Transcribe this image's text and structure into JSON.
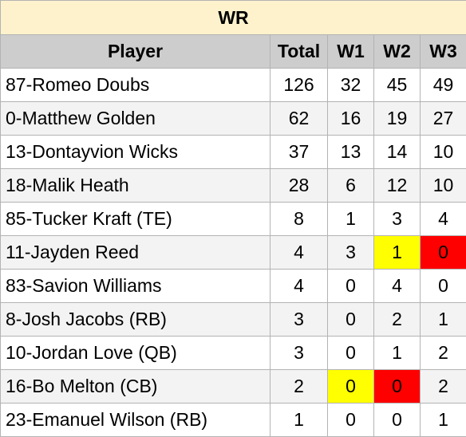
{
  "title": "WR",
  "headers": {
    "player": "Player",
    "total": "Total",
    "w1": "W1",
    "w2": "W2",
    "w3": "W3"
  },
  "highlight_colors": {
    "yellow": "#ffff00",
    "red": "#ff0000"
  },
  "rows": [
    {
      "player": "87-Romeo Doubs",
      "total": "126",
      "w1": "32",
      "w2": "45",
      "w3": "49"
    },
    {
      "player": "0-Matthew Golden",
      "total": "62",
      "w1": "16",
      "w2": "19",
      "w3": "27"
    },
    {
      "player": "13-Dontayvion Wicks",
      "total": "37",
      "w1": "13",
      "w2": "14",
      "w3": "10"
    },
    {
      "player": "18-Malik Heath",
      "total": "28",
      "w1": "6",
      "w2": "12",
      "w3": "10"
    },
    {
      "player": "85-Tucker Kraft (TE)",
      "total": "8",
      "w1": "1",
      "w2": "3",
      "w3": "4"
    },
    {
      "player": "11-Jayden Reed",
      "total": "4",
      "w1": "3",
      "w2": "1",
      "w3": "0",
      "highlight": {
        "w2": "yellow",
        "w3": "red"
      }
    },
    {
      "player": "83-Savion Williams",
      "total": "4",
      "w1": "0",
      "w2": "4",
      "w3": "0"
    },
    {
      "player": "8-Josh Jacobs (RB)",
      "total": "3",
      "w1": "0",
      "w2": "2",
      "w3": "1"
    },
    {
      "player": "10-Jordan Love (QB)",
      "total": "3",
      "w1": "0",
      "w2": "1",
      "w3": "2"
    },
    {
      "player": "16-Bo Melton (CB)",
      "total": "2",
      "w1": "0",
      "w2": "0",
      "w3": "2",
      "highlight": {
        "w1": "yellow",
        "w2": "red"
      }
    },
    {
      "player": "23-Emanuel Wilson (RB)",
      "total": "1",
      "w1": "0",
      "w2": "0",
      "w3": "1"
    }
  ]
}
